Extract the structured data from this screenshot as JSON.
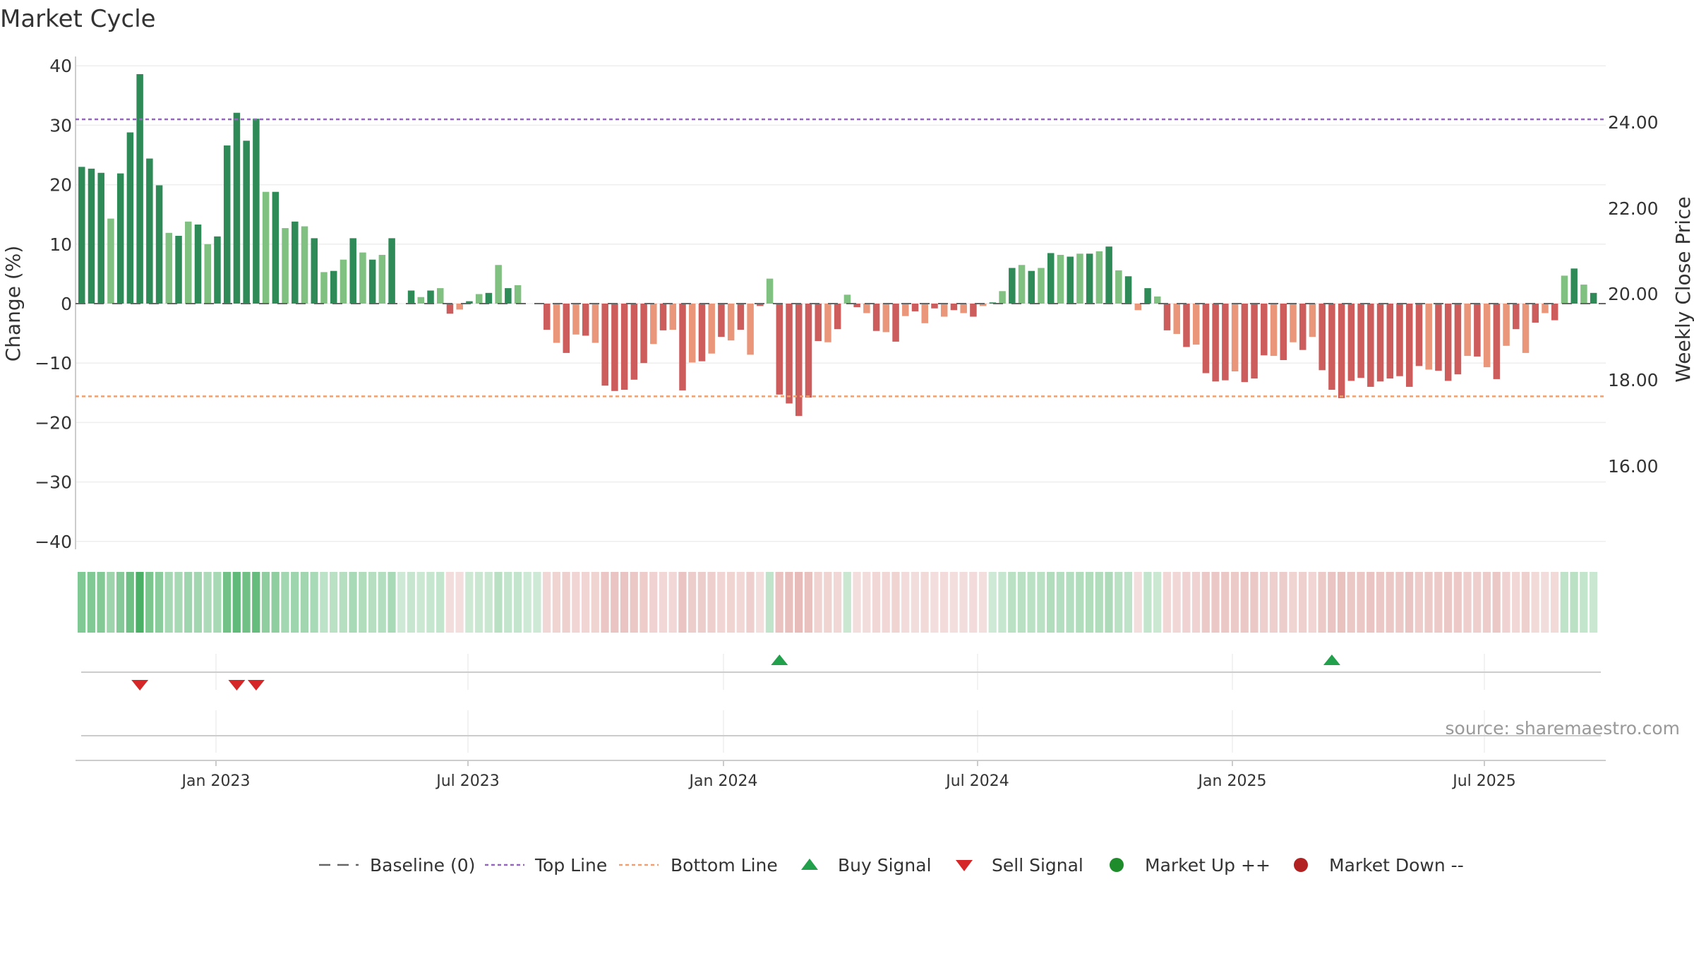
{
  "chart_data": {
    "type": "bar",
    "title": "Market Cycle",
    "ylabel_left": "Change (%)",
    "ylabel_right": "Weekly Close Price",
    "ylim_left": [
      -40,
      40
    ],
    "yticks_left": [
      "40",
      "30",
      "20",
      "10",
      "0",
      "−10",
      "−20",
      "−30",
      "−40"
    ],
    "yticks_right": [
      "24.00",
      "22.00",
      "20.00",
      "18.00",
      "16.00"
    ],
    "x_tick_labels": [
      "Jan 2023",
      "Jul 2023",
      "Jan 2024",
      "Jul 2024",
      "Jan 2025",
      "Jul 2025"
    ],
    "top_line": 31,
    "bottom_line": -15.6,
    "grid": true,
    "source_note": "source: sharemaestro.com",
    "legend_position": "bottom-center",
    "legend": [
      {
        "label": "Baseline (0)",
        "marker": "dash",
        "color": "#666666"
      },
      {
        "label": "Top Line",
        "marker": "dotted",
        "color": "#9467bd"
      },
      {
        "label": "Bottom Line",
        "marker": "dotted",
        "color": "#f0a070"
      },
      {
        "label": "Buy Signal",
        "marker": "triangle-up",
        "color": "#22a04b"
      },
      {
        "label": "Sell Signal",
        "marker": "triangle-down",
        "color": "#d62728"
      },
      {
        "label": "Market Up ++",
        "marker": "circle",
        "color": "#1e8c2a"
      },
      {
        "label": "Market Down --",
        "marker": "circle",
        "color": "#b22222"
      }
    ],
    "colors": {
      "up_strong": "#2e8b57",
      "up_weak": "#80c080",
      "down_strong": "#cd5c5c",
      "down_weak": "#e9967a",
      "top_line": "#9467bd",
      "bottom_line": "#f0a070",
      "buy": "#22a04b",
      "sell": "#d62728"
    },
    "buy_signal_weeks": [
      72,
      129
    ],
    "sell_signal_weeks": [
      6,
      16,
      18
    ],
    "weeks": 157,
    "values": [
      23,
      22.7,
      22,
      14.3,
      21.9,
      28.8,
      38.6,
      24.4,
      19.9,
      11.9,
      11.4,
      13.8,
      13.3,
      10,
      11.3,
      26.6,
      32.1,
      27.4,
      31.1,
      18.8,
      18.8,
      12.7,
      13.8,
      13,
      11,
      5.3,
      5.5,
      7.4,
      11,
      8.6,
      7.4,
      8.2,
      11,
      0,
      2.2,
      1.1,
      2.2,
      2.6,
      -1.7,
      -1,
      0.4,
      1.6,
      1.8,
      6.5,
      2.6,
      3.1,
      0,
      0,
      -4.4,
      -6.6,
      -8.3,
      -5.2,
      -5.4,
      -6.6,
      -13.8,
      -14.7,
      -14.5,
      -12.8,
      -10,
      -6.8,
      -4.5,
      -4.4,
      -14.6,
      -9.9,
      -9.7,
      -8.4,
      -5.6,
      -6.2,
      -4.4,
      -8.6,
      -0.4,
      4.2,
      -15.3,
      -16.8,
      -18.9,
      -15.8,
      -6.3,
      -6.5,
      -4.3,
      1.5,
      -0.6,
      -1.6,
      -4.6,
      -4.8,
      -6.4,
      -2.1,
      -1.3,
      -3.3,
      -0.8,
      -2.2,
      -1.1,
      -1.6,
      -2.2,
      -0.4,
      0.2,
      2.1,
      6,
      6.5,
      5.5,
      6,
      8.5,
      8.2,
      7.9,
      8.4,
      8.4,
      8.8,
      9.6,
      5.6,
      4.6,
      -1.1,
      2.6,
      1.2,
      -4.5,
      -5.1,
      -7.3,
      -6.9,
      -11.7,
      -13.1,
      -12.9,
      -11.4,
      -13.2,
      -12.6,
      -8.7,
      -8.8,
      -9.5,
      -6.5,
      -7.8,
      -5.6,
      -11.2,
      -14.5,
      -15.9,
      -13,
      -12.5,
      -14,
      -13.1,
      -12.6,
      -12.2,
      -14,
      -10.5,
      -11.1,
      -11.3,
      -13,
      -11.9,
      -8.8,
      -8.9,
      -10.7,
      -12.7,
      -7.1,
      -4.3,
      -8.3,
      -3.2,
      -1.6,
      -2.8,
      4.7,
      5.9,
      3.2,
      1.8
    ]
  }
}
